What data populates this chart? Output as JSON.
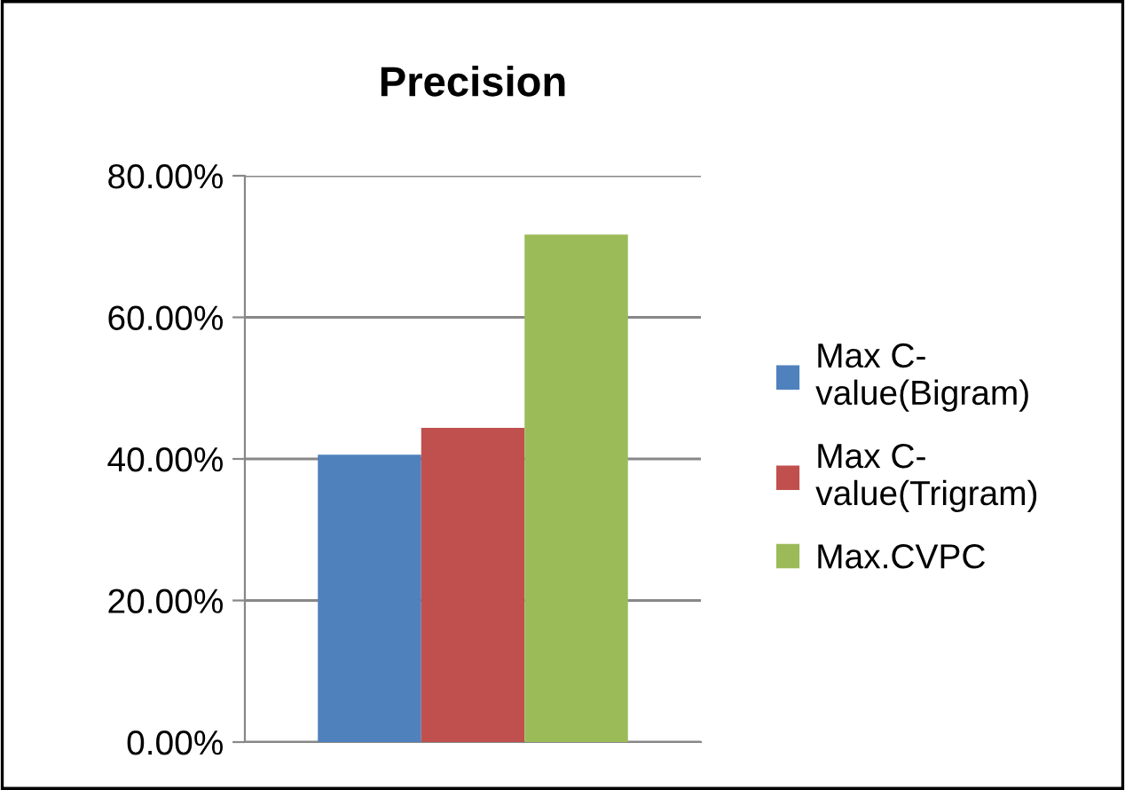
{
  "chart_data": {
    "type": "bar",
    "title": "Precision",
    "categories": [
      null
    ],
    "series": [
      {
        "name": "Max C-value(Bigram)",
        "color": "#4f81bd",
        "values": [
          40.6
        ]
      },
      {
        "name": "Max C-value(Trigram)",
        "color": "#c0504d",
        "values": [
          44.4
        ]
      },
      {
        "name": "Max.CVPC",
        "color": "#9bbb59",
        "values": [
          71.7
        ]
      }
    ],
    "ylim": [
      0,
      80
    ],
    "yticks": [
      {
        "value": 0,
        "label": "0.00%"
      },
      {
        "value": 20,
        "label": "20.00%"
      },
      {
        "value": 40,
        "label": "40.00%"
      },
      {
        "value": 60,
        "label": "60.00%"
      },
      {
        "value": 80,
        "label": "80.00%"
      }
    ],
    "grid": "y",
    "legend": "right"
  }
}
